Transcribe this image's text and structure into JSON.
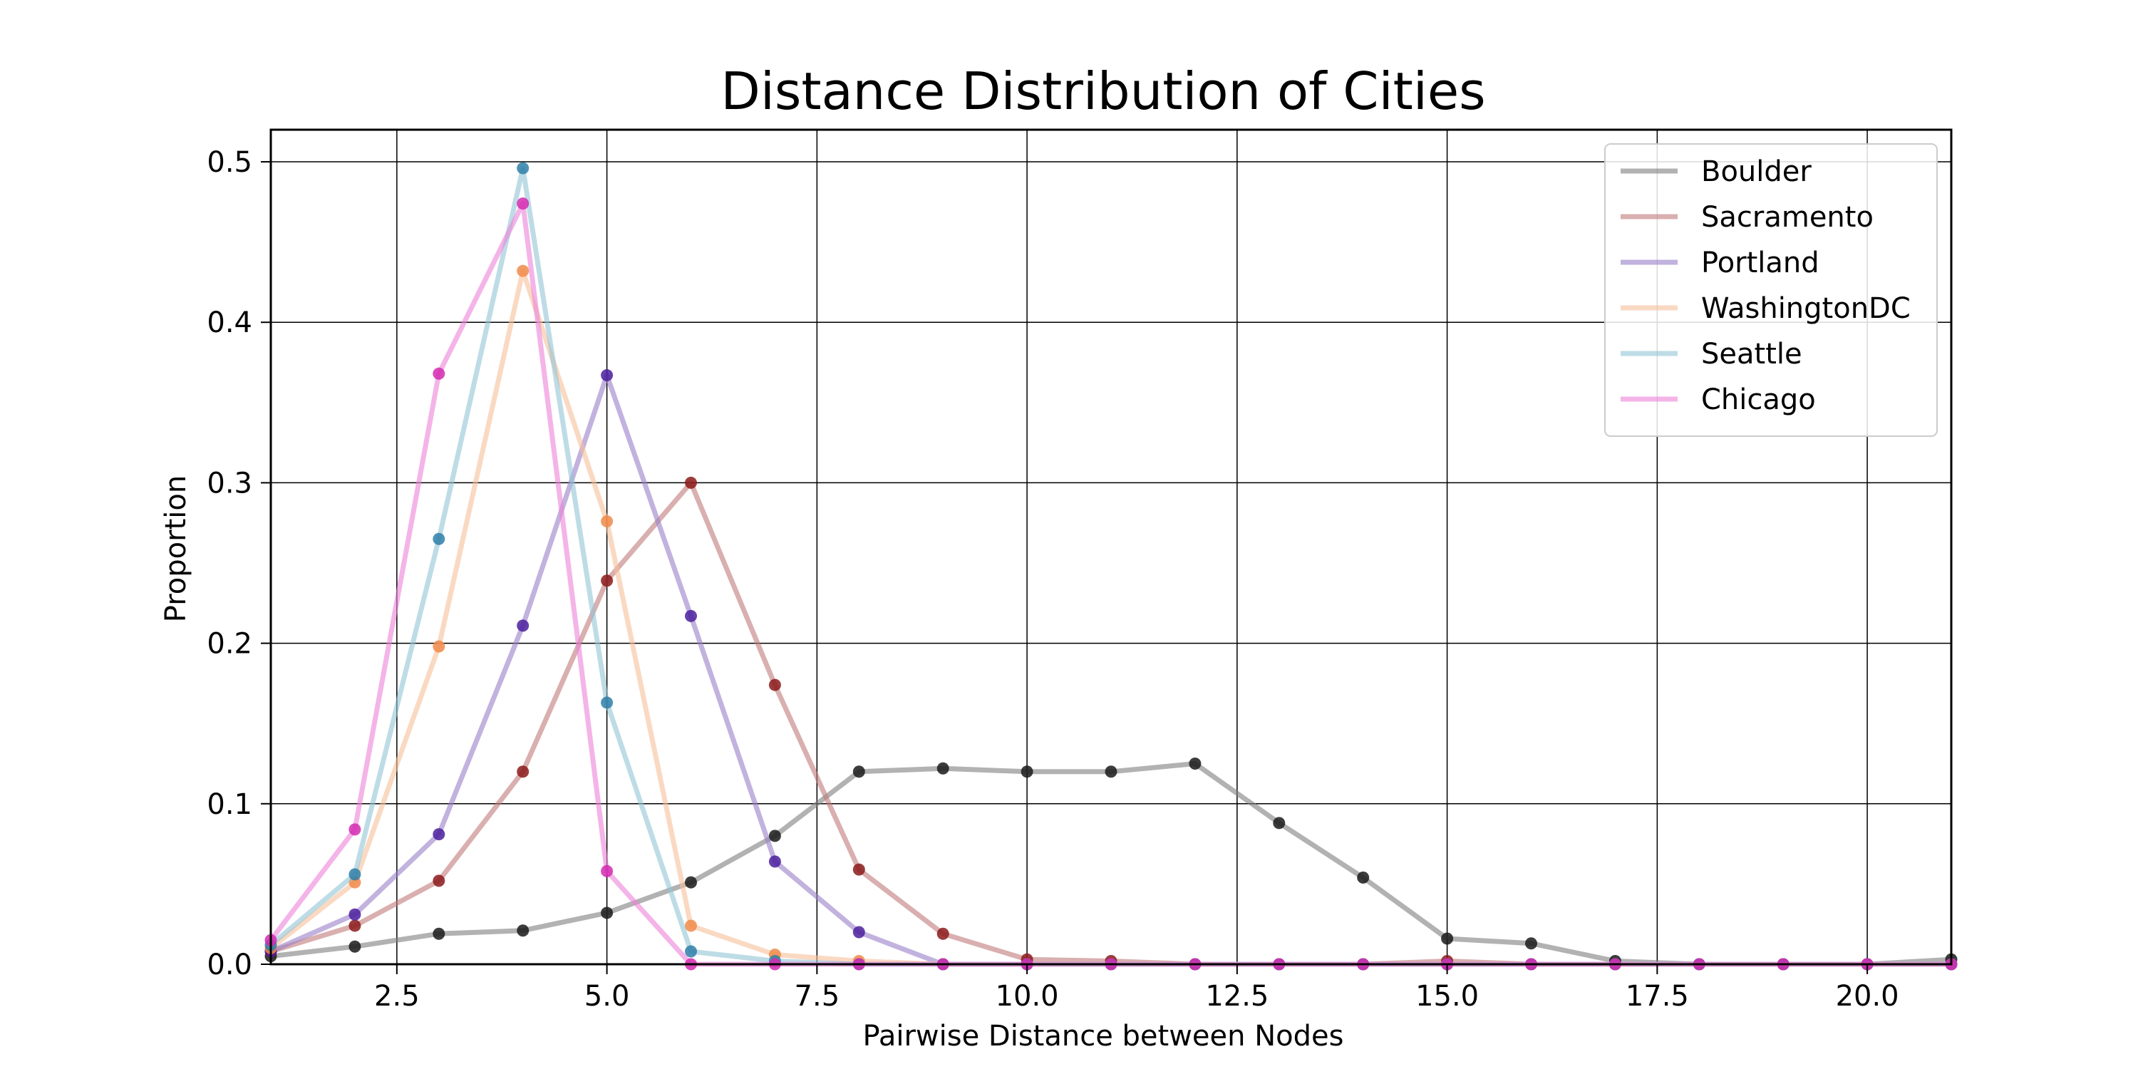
{
  "chart_data": {
    "type": "line",
    "title": "Distance Distribution of Cities",
    "xlabel": "Pairwise Distance between Nodes",
    "ylabel": "Proportion",
    "xlim": [
      1,
      21
    ],
    "ylim": [
      0,
      0.52
    ],
    "xticks": [
      2.5,
      5.0,
      7.5,
      10.0,
      12.5,
      15.0,
      17.5,
      20.0
    ],
    "xtick_labels": [
      "2.5",
      "5.0",
      "7.5",
      "10.0",
      "12.5",
      "15.0",
      "17.5",
      "20.0"
    ],
    "yticks": [
      0.0,
      0.1,
      0.2,
      0.3,
      0.4,
      0.5
    ],
    "ytick_labels": [
      "0.0",
      "0.1",
      "0.2",
      "0.3",
      "0.4",
      "0.5"
    ],
    "grid": true,
    "legend_position": "top-right",
    "series": [
      {
        "name": "Boulder",
        "line_color": "#7f7f7f",
        "marker_color": "#1a1a1a",
        "x": [
          1,
          2,
          3,
          4,
          5,
          6,
          7,
          8,
          9,
          10,
          11,
          12,
          13,
          14,
          15,
          16,
          17,
          18,
          19,
          20,
          21
        ],
        "values": [
          0.005,
          0.011,
          0.019,
          0.021,
          0.032,
          0.051,
          0.08,
          0.12,
          0.122,
          0.12,
          0.12,
          0.125,
          0.088,
          0.054,
          0.016,
          0.013,
          0.002,
          0.0,
          0.0,
          0.0,
          0.003
        ]
      },
      {
        "name": "Sacramento",
        "line_color": "#c07a7a",
        "marker_color": "#8b1a1a",
        "x": [
          1,
          2,
          3,
          4,
          5,
          6,
          7,
          8,
          9,
          10,
          11,
          12,
          13,
          14,
          15,
          16,
          17,
          18,
          19,
          20,
          21
        ],
        "values": [
          0.008,
          0.024,
          0.052,
          0.12,
          0.239,
          0.3,
          0.174,
          0.059,
          0.019,
          0.003,
          0.002,
          0.0,
          0.0,
          0.0,
          0.002,
          0.0,
          0.0,
          0.0,
          0.0,
          0.0,
          0.0
        ]
      },
      {
        "name": "Portland",
        "line_color": "#9a7ec8",
        "marker_color": "#4b1f9e",
        "x": [
          1,
          2,
          3,
          4,
          5,
          6,
          7,
          8,
          9,
          10,
          11,
          12,
          13,
          14,
          15,
          16,
          17,
          18,
          19,
          20,
          21
        ],
        "values": [
          0.008,
          0.031,
          0.081,
          0.211,
          0.367,
          0.217,
          0.064,
          0.02,
          0.0,
          0.0,
          0.0,
          0.0,
          0.0,
          0.0,
          0.0,
          0.0,
          0.0,
          0.0,
          0.0,
          0.0,
          0.0
        ]
      },
      {
        "name": "WashingtonDC",
        "line_color": "#f6bf99",
        "marker_color": "#f08a4a",
        "x": [
          1,
          2,
          3,
          4,
          5,
          6,
          7,
          8,
          9,
          10,
          11,
          12,
          13,
          14,
          15,
          16,
          17,
          18,
          19,
          20,
          21
        ],
        "values": [
          0.01,
          0.051,
          0.198,
          0.432,
          0.276,
          0.024,
          0.006,
          0.002,
          0.0,
          0.0,
          0.0,
          0.0,
          0.0,
          0.0,
          0.0,
          0.0,
          0.0,
          0.0,
          0.0,
          0.0,
          0.0
        ]
      },
      {
        "name": "Seattle",
        "line_color": "#92c4d6",
        "marker_color": "#2f7fa8",
        "x": [
          1,
          2,
          3,
          4,
          5,
          6,
          7,
          8,
          9,
          10,
          11,
          12,
          13,
          14,
          15,
          16,
          17,
          18,
          19,
          20,
          21
        ],
        "values": [
          0.012,
          0.056,
          0.265,
          0.496,
          0.163,
          0.008,
          0.002,
          0.0,
          0.0,
          0.0,
          0.0,
          0.0,
          0.0,
          0.0,
          0.0,
          0.0,
          0.0,
          0.0,
          0.0,
          0.0,
          0.0
        ]
      },
      {
        "name": "Chicago",
        "line_color": "#ec82d8",
        "marker_color": "#d42ab0",
        "x": [
          1,
          2,
          3,
          4,
          5,
          6,
          7,
          8,
          9,
          10,
          11,
          12,
          13,
          14,
          15,
          16,
          17,
          18,
          19,
          20,
          21
        ],
        "values": [
          0.015,
          0.084,
          0.368,
          0.474,
          0.058,
          0.0,
          0.0,
          0.0,
          0.0,
          0.0,
          0.0,
          0.0,
          0.0,
          0.0,
          0.0,
          0.0,
          0.0,
          0.0,
          0.0,
          0.0,
          0.0
        ]
      }
    ]
  }
}
